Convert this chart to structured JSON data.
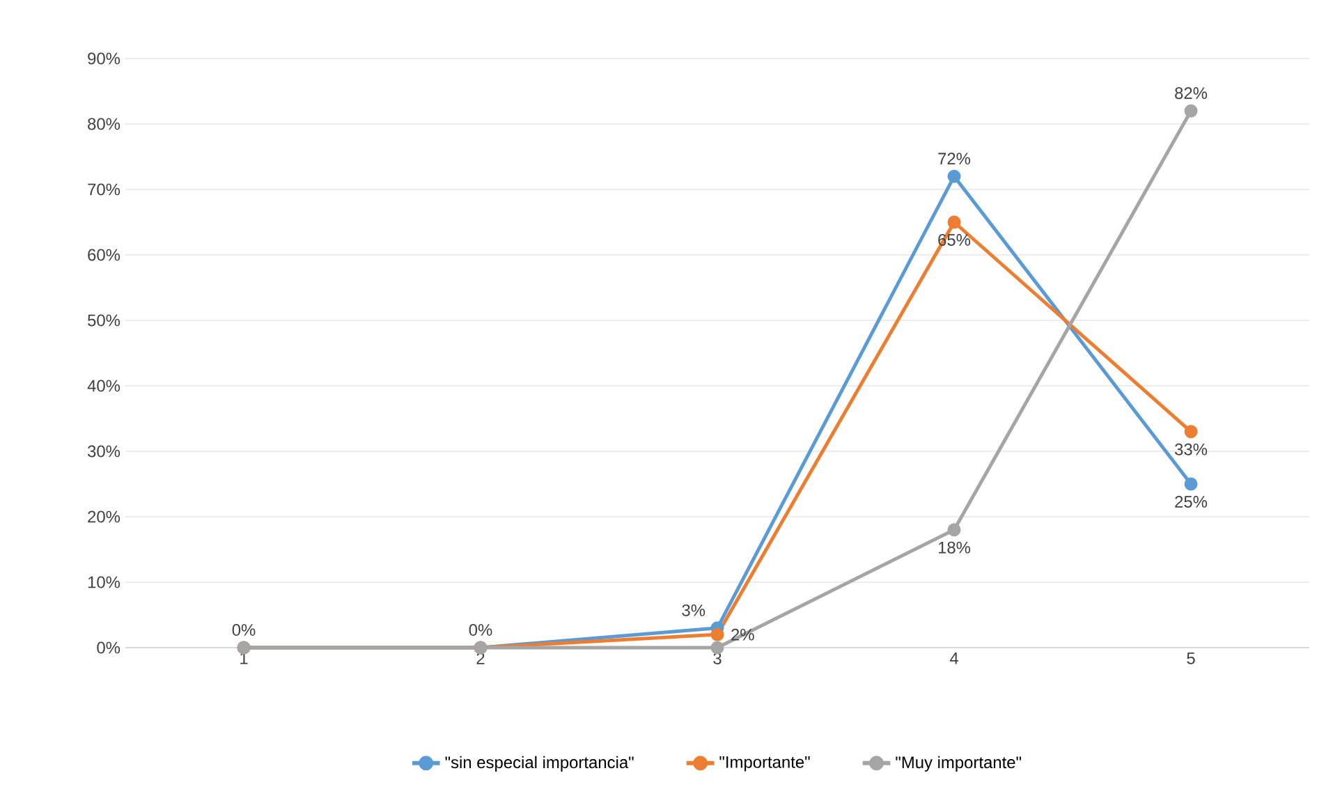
{
  "chart_data": {
    "type": "line",
    "categories": [
      "1",
      "2",
      "3",
      "4",
      "5"
    ],
    "series": [
      {
        "name": "\"sin especial importancia\"",
        "color": "#5b9bd5",
        "values": [
          0,
          0,
          3,
          72,
          25
        ],
        "value_labels": [
          "0%",
          "0%",
          "3%",
          "72%",
          "25%"
        ]
      },
      {
        "name": "\"Importante\"",
        "color": "#ed7d31",
        "values": [
          0,
          0,
          2,
          65,
          33
        ],
        "value_labels": [
          null,
          null,
          "2%",
          "65%",
          "33%"
        ]
      },
      {
        "name": "\"Muy importante\"",
        "color": "#a5a5a5",
        "values": [
          0,
          0,
          0,
          18,
          82
        ],
        "value_labels": [
          null,
          null,
          null,
          "18%",
          "82%"
        ]
      }
    ],
    "ylim": [
      0,
      90
    ],
    "yticks": [
      {
        "value": 0,
        "label": "0%"
      },
      {
        "value": 10,
        "label": "10%"
      },
      {
        "value": 20,
        "label": "20%"
      },
      {
        "value": 30,
        "label": "30%"
      },
      {
        "value": 40,
        "label": "40%"
      },
      {
        "value": 50,
        "label": "50%"
      },
      {
        "value": 60,
        "label": "60%"
      },
      {
        "value": 70,
        "label": "70%"
      },
      {
        "value": 80,
        "label": "80%"
      },
      {
        "value": 90,
        "label": "90%"
      }
    ],
    "grid": "y",
    "legend": "bottom",
    "marker": "circle",
    "line_style": "solid"
  }
}
